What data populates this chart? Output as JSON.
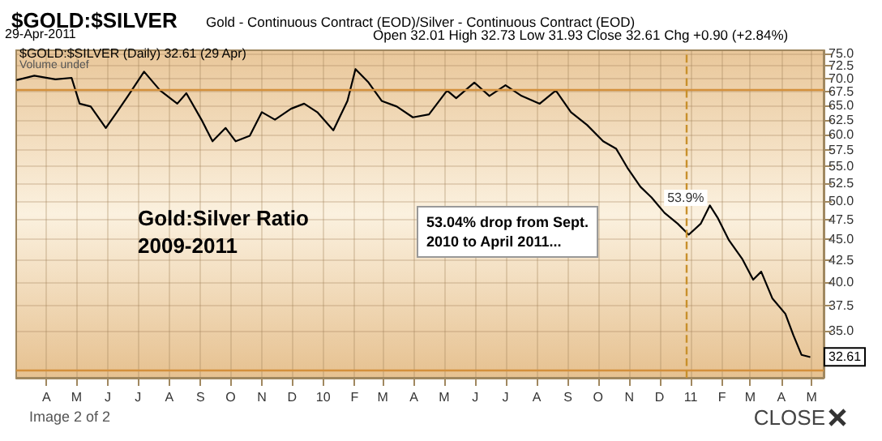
{
  "chart_data": {
    "type": "line",
    "title": "$GOLD:$SILVER",
    "subtitle": "Gold - Continuous Contract (EOD)/Silver - Continuous Contract (EOD)",
    "annotations": [
      "29-Apr-2011",
      "Open 32.01 High 32.73 Low 31.93 Close 32.61 Chg +0.90 (+2.84%)",
      "$GOLD:$SILVER (Daily) 32.61 (29 Apr)",
      "Volume undef",
      "Gold:Silver Ratio\n2009-2011",
      "53.04% drop from Sept.\n2010 to April 2011...",
      {
        "text": "32.61",
        "x": "2011-04-29",
        "y": 32.61
      },
      "Image 2 of 2",
      "CLOSE"
    ],
    "x": [
      "2009-03-03",
      "2009-03-20",
      "2009-04-10",
      "2009-04-26",
      "2009-05-04",
      "2009-05-15",
      "2009-05-30",
      "2009-06-10",
      "2009-06-21",
      "2009-07-07",
      "2009-07-23",
      "2009-08-09",
      "2009-08-18",
      "2009-09-02",
      "2009-09-13",
      "2009-09-26",
      "2009-10-06",
      "2009-10-20",
      "2009-11-01",
      "2009-11-14",
      "2009-11-30",
      "2009-12-13",
      "2009-12-26",
      "2010-01-11",
      "2010-01-25",
      "2010-02-02",
      "2010-02-15",
      "2010-02-28",
      "2010-03-15",
      "2010-03-31",
      "2010-04-16",
      "2010-05-04",
      "2010-05-13",
      "2010-05-31",
      "2010-06-15",
      "2010-07-01",
      "2010-07-17",
      "2010-08-04",
      "2010-08-20",
      "2010-09-04",
      "2010-09-20",
      "2010-10-06",
      "2010-10-19",
      "2010-10-30",
      "2010-11-12",
      "2010-11-23",
      "2010-12-06",
      "2010-12-19",
      "2010-12-30",
      "2011-01-11",
      "2011-01-20",
      "2011-01-28",
      "2011-02-08",
      "2011-02-21",
      "2011-03-04",
      "2011-03-12",
      "2011-03-23",
      "2011-04-05",
      "2011-04-13",
      "2011-04-21",
      "2011-04-29"
    ],
    "series": [
      {
        "color": "#000000",
        "values": [
          69.7,
          70.5,
          69.8,
          70.1,
          65.3,
          64.8,
          61.1,
          63.8,
          66.7,
          71.3,
          67.7,
          65.3,
          67.2,
          62.5,
          58.9,
          61.1,
          58.9,
          59.8,
          63.8,
          62.5,
          64.4,
          65.3,
          63.8,
          60.7,
          65.8,
          71.8,
          69.2,
          65.8,
          64.8,
          62.9,
          63.4,
          67.7,
          66.3,
          69.2,
          66.7,
          68.7,
          66.7,
          65.3,
          67.7,
          63.8,
          61.6,
          58.9,
          57.7,
          54.8,
          52.0,
          50.5,
          48.4,
          47.0,
          45.6,
          47.0,
          49.4,
          47.7,
          44.9,
          42.7,
          40.3,
          41.2,
          38.3,
          36.7,
          34.6,
          32.8,
          32.61
        ]
      }
    ],
    "line_style": "solid",
    "log": true,
    "grid": true,
    "xlim": [
      "2009-03-02",
      "2011-05-13"
    ],
    "ylim": [
      30.8,
      75.6
    ],
    "yticks": [
      {
        "value": 35,
        "label": "35.0"
      },
      {
        "value": 37.5,
        "label": "37.5"
      },
      {
        "value": 40,
        "label": "40.0"
      },
      {
        "value": 42.5,
        "label": "42.5"
      },
      {
        "value": 45,
        "label": "45.0"
      },
      {
        "value": 47.5,
        "label": "47.5"
      },
      {
        "value": 50,
        "label": "50.0"
      },
      {
        "value": 52.5,
        "label": "52.5"
      },
      {
        "value": 55,
        "label": "55.0"
      },
      {
        "value": 57.5,
        "label": "57.5"
      },
      {
        "value": 60,
        "label": "60.0"
      },
      {
        "value": 62.5,
        "label": "62.5"
      },
      {
        "value": 65,
        "label": "65.0"
      },
      {
        "value": 67.5,
        "label": "67.5"
      },
      {
        "value": 70,
        "label": "70.0"
      },
      {
        "value": 72.5,
        "label": "72.5"
      },
      {
        "value": 75,
        "label": "75.0"
      }
    ],
    "xticks": [
      {
        "value": "2009-04-01",
        "label": "A"
      },
      {
        "value": "2009-05-01",
        "label": "M"
      },
      {
        "value": "2009-06-01",
        "label": "J"
      },
      {
        "value": "2009-07-01",
        "label": "J"
      },
      {
        "value": "2009-08-01",
        "label": "A"
      },
      {
        "value": "2009-09-01",
        "label": "S"
      },
      {
        "value": "2009-10-01",
        "label": "O"
      },
      {
        "value": "2009-11-01",
        "label": "N"
      },
      {
        "value": "2009-12-01",
        "label": "D"
      },
      {
        "value": "2010-01-01",
        "label": "10"
      },
      {
        "value": "2010-02-01",
        "label": "F"
      },
      {
        "value": "2010-03-01",
        "label": "M"
      },
      {
        "value": "2010-04-01",
        "label": "A"
      },
      {
        "value": "2010-05-01",
        "label": "M"
      },
      {
        "value": "2010-06-01",
        "label": "J"
      },
      {
        "value": "2010-07-01",
        "label": "J"
      },
      {
        "value": "2010-08-01",
        "label": "A"
      },
      {
        "value": "2010-09-01",
        "label": "S"
      },
      {
        "value": "2010-10-01",
        "label": "O"
      },
      {
        "value": "2010-11-01",
        "label": "N"
      },
      {
        "value": "2010-12-01",
        "label": "D"
      },
      {
        "value": "2011-01-01",
        "label": "11"
      },
      {
        "value": "2011-02-01",
        "label": "F"
      },
      {
        "value": "2011-03-01",
        "label": "M"
      },
      {
        "value": "2011-04-01",
        "label": "A"
      },
      {
        "value": "2011-05-01",
        "label": "M"
      }
    ],
    "ref_lines": [
      {
        "axis": "y",
        "value": 67.9,
        "color": "#d4903c",
        "line_style": "solid"
      },
      {
        "axis": "y",
        "value": 31.5,
        "color": "#d4903c",
        "line_style": "solid"
      },
      {
        "axis": "x",
        "value": "2010-12-27",
        "label": "53.9%",
        "color": "#c8902c",
        "line_style": "dashed"
      }
    ]
  }
}
